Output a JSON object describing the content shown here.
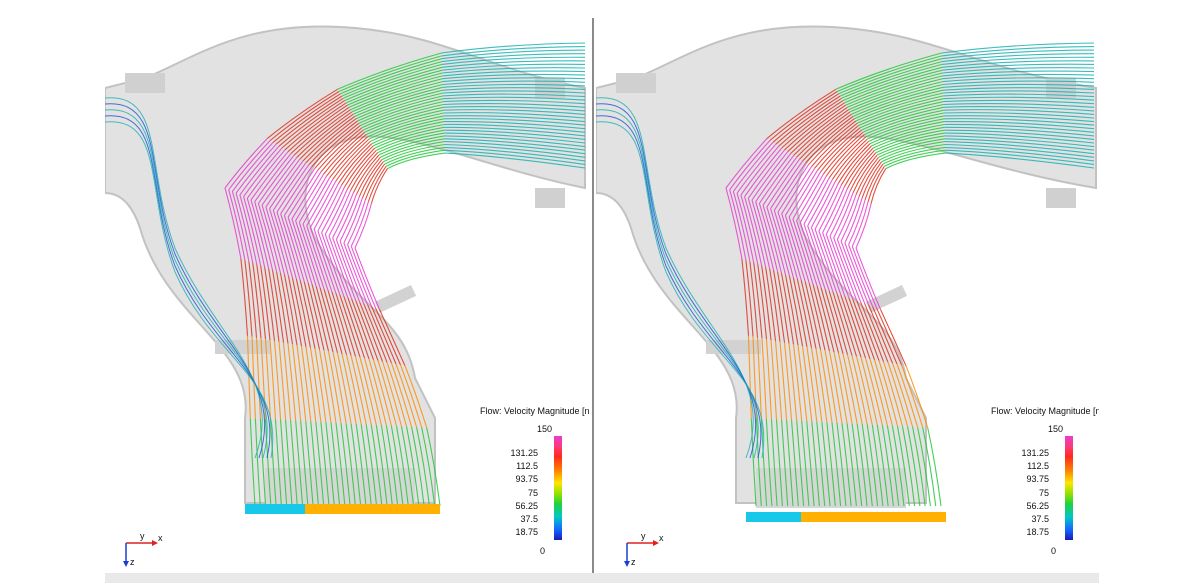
{
  "legend": {
    "title": "Flow: Velocity Magnitude [n",
    "max": "150",
    "min": "0",
    "ticks": [
      "131.25",
      "112.5",
      "93.75",
      "75",
      "56.25",
      "37.5",
      "18.75"
    ]
  },
  "triad": {
    "x_label": "x",
    "y_label": "y",
    "z_label": "z"
  },
  "colors": {
    "magenta": "#e83ccf",
    "red": "#e0301e",
    "orange": "#ff8c00",
    "yellow": "#e8e000",
    "green": "#22c83a",
    "teal": "#1ab0b0",
    "blue": "#1a4fd8",
    "body": "#d8d8d8"
  }
}
